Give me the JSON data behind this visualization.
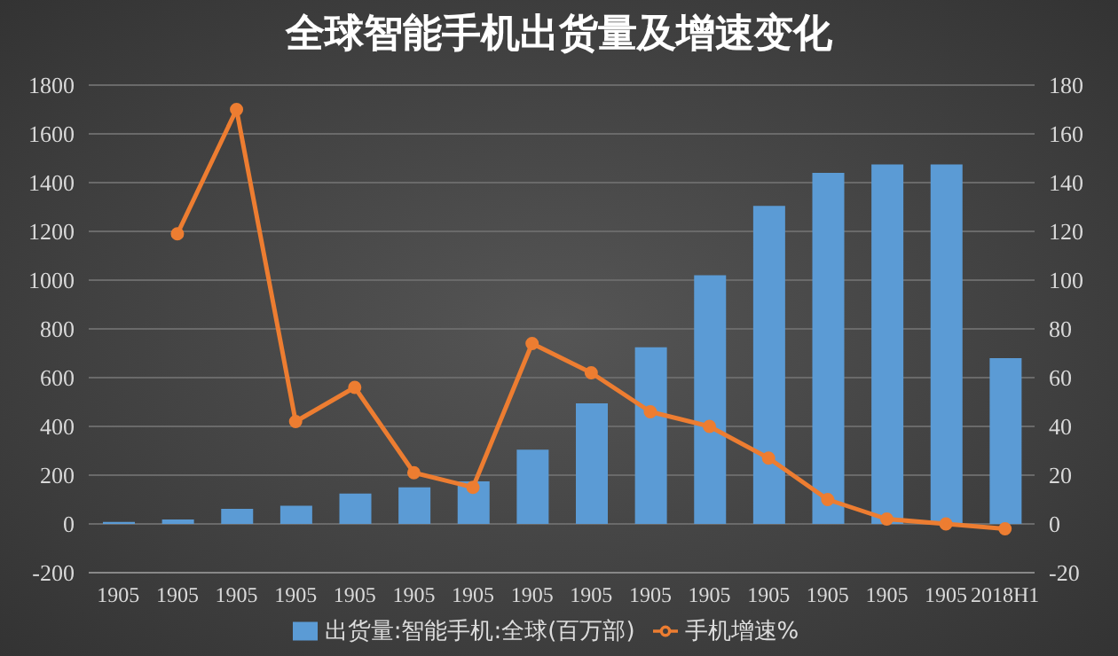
{
  "chart_data": {
    "type": "bar",
    "title": "全球智能手机出货量及增速变化",
    "categories": [
      "1905",
      "1905",
      "1905",
      "1905",
      "1905",
      "1905",
      "1905",
      "1905",
      "1905",
      "1905",
      "1905",
      "1905",
      "1905",
      "1905",
      "1905",
      "2018H1"
    ],
    "series": [
      {
        "name": "出货量:智能手机:全球(百万部)",
        "color": "#5b9bd5",
        "values": [
          8,
          18,
          62,
          75,
          125,
          150,
          175,
          305,
          495,
          725,
          1020,
          1305,
          1440,
          1475,
          1475,
          680
        ]
      },
      {
        "name": "手机增速%",
        "type": "line",
        "axis": "y2",
        "color": "#ed7d31",
        "marker": "circle",
        "values": [
          null,
          119,
          170,
          42,
          56,
          21,
          15,
          74,
          62,
          46,
          40,
          27,
          10,
          2,
          0,
          -2
        ]
      }
    ],
    "ylim": [
      -200,
      1800
    ],
    "yticks": [
      -200,
      0,
      200,
      400,
      600,
      800,
      1000,
      1200,
      1400,
      1600,
      1800
    ],
    "y2lim": [
      -20,
      180
    ],
    "y2ticks": [
      -20,
      0,
      20,
      40,
      60,
      80,
      100,
      120,
      140,
      160,
      180
    ],
    "grid": "y",
    "legend": "bottom"
  }
}
